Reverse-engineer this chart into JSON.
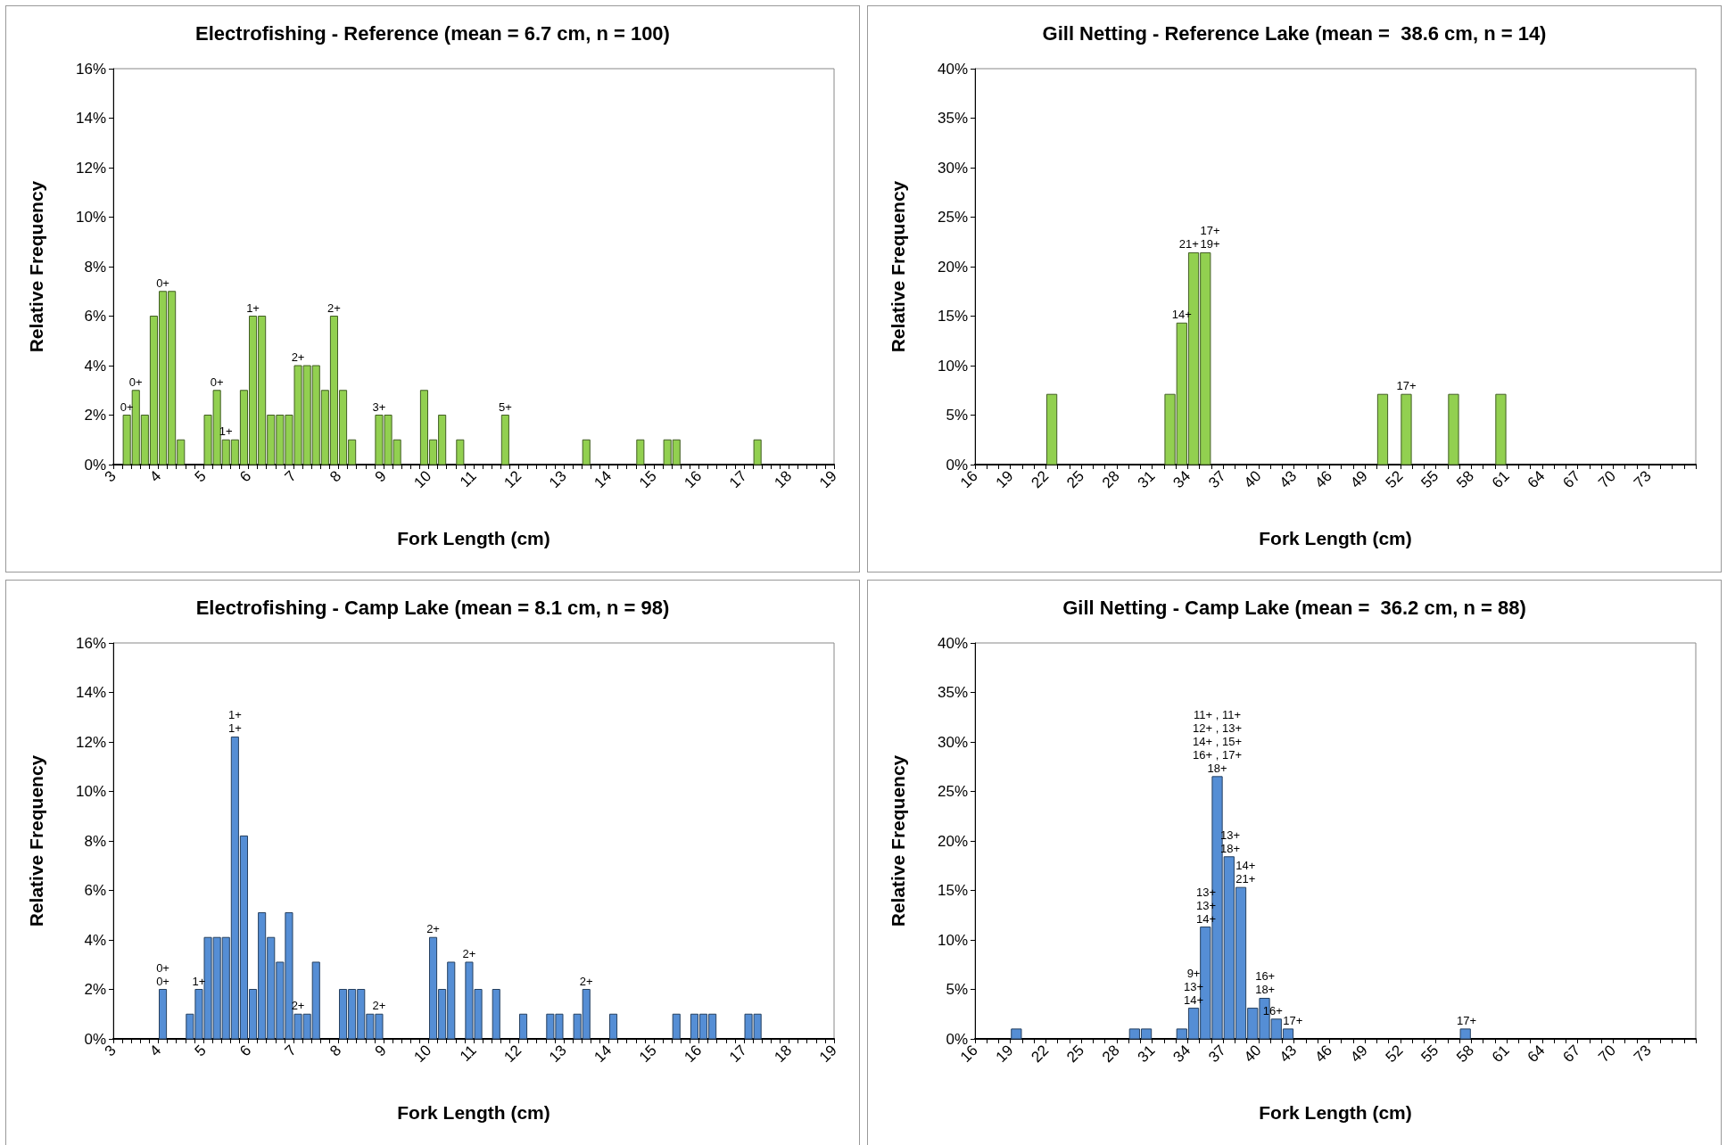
{
  "chart_data": [
    {
      "type": "histogram",
      "title": "Electrofishing - Reference (mean = 6.7 cm, n = 100)",
      "xlabel": "Fork Length (cm)",
      "ylabel": "Relative Frequency",
      "color": "#92d050",
      "bins": [
        3,
        3.2,
        3.4,
        3.6,
        3.8,
        4,
        4.2,
        4.4,
        4.6,
        4.8,
        5,
        5.2,
        5.4,
        5.6,
        5.8,
        6,
        6.2,
        6.4,
        6.6,
        6.8,
        7,
        7.2,
        7.4,
        7.6,
        7.8,
        8,
        8.2,
        8.4,
        8.6,
        8.8,
        9,
        9.2,
        9.4,
        9.6,
        9.8,
        10,
        10.2,
        10.4,
        10.6,
        10.8,
        11,
        11.2,
        11.4,
        11.6,
        11.8,
        12,
        12.2,
        12.4,
        12.6,
        12.8,
        13,
        13.2,
        13.4,
        13.6,
        13.8,
        14,
        14.2,
        14.4,
        14.6,
        14.8,
        15,
        15.2,
        15.4,
        15.6,
        15.8,
        16,
        16.2,
        16.4,
        16.6,
        16.8,
        17,
        17.2,
        17.4,
        17.6,
        17.8,
        18,
        18.2,
        18.4,
        18.6,
        18.8,
        19
      ],
      "values": [
        0,
        2,
        3,
        2,
        6,
        7,
        7,
        1,
        0,
        0,
        2,
        3,
        1,
        1,
        3,
        6,
        6,
        2,
        2,
        2,
        4,
        4,
        4,
        3,
        6,
        3,
        1,
        0,
        0,
        2,
        2,
        1,
        0,
        0,
        3,
        1,
        2,
        0,
        1,
        0,
        0,
        0,
        0,
        2,
        0,
        0,
        0,
        0,
        0,
        0,
        0,
        0,
        1,
        0,
        0,
        0,
        0,
        0,
        1,
        0,
        0,
        1,
        1,
        0,
        0,
        0,
        0,
        0,
        0,
        0,
        0,
        1,
        0,
        0,
        0,
        0,
        0,
        0,
        0,
        0
      ],
      "annotations": [
        {
          "text": "0+",
          "x": 3.3,
          "y": 2
        },
        {
          "text": "0+",
          "x": 3.5,
          "y": 3
        },
        {
          "text": "0+",
          "x": 4.1,
          "y": 7
        },
        {
          "text": "0+",
          "x": 5.3,
          "y": 3
        },
        {
          "text": "1+",
          "x": 5.5,
          "y": 1
        },
        {
          "text": "1+",
          "x": 6.1,
          "y": 6
        },
        {
          "text": "2+",
          "x": 7.1,
          "y": 4
        },
        {
          "text": "2+",
          "x": 7.9,
          "y": 6
        },
        {
          "text": "3+",
          "x": 8.9,
          "y": 2
        },
        {
          "text": "5+",
          "x": 11.7,
          "y": 2
        }
      ],
      "xlim": [
        3,
        19
      ],
      "xticks": [
        3,
        4,
        5,
        6,
        7,
        8,
        9,
        10,
        11,
        12,
        13,
        14,
        15,
        16,
        17,
        18,
        19
      ],
      "ylim": [
        0,
        16
      ],
      "yticks": [
        {
          "value": 0,
          "label": "0%"
        },
        {
          "value": 2,
          "label": "2%"
        },
        {
          "value": 4,
          "label": "4%"
        },
        {
          "value": 6,
          "label": "6%"
        },
        {
          "value": 8,
          "label": "8%"
        },
        {
          "value": 10,
          "label": "10%"
        },
        {
          "value": 12,
          "label": "12%"
        },
        {
          "value": 14,
          "label": "14%"
        },
        {
          "value": 16,
          "label": "16%"
        }
      ]
    },
    {
      "type": "histogram",
      "title": "Gill Netting - Reference Lake (mean =  38.6 cm, n = 14)",
      "xlabel": "Fork Length (cm)",
      "ylabel": "Relative Frequency",
      "color": "#92d050",
      "bins": [
        16,
        17,
        18,
        19,
        20,
        21,
        22,
        23,
        24,
        25,
        26,
        27,
        28,
        29,
        30,
        31,
        32,
        33,
        34,
        35,
        36,
        37,
        38,
        39,
        40,
        41,
        42,
        43,
        44,
        45,
        46,
        47,
        48,
        49,
        50,
        51,
        52,
        53,
        54,
        55,
        56,
        57,
        58,
        59,
        60,
        61,
        62,
        63,
        64,
        65,
        66,
        67,
        68,
        69,
        70,
        71,
        72,
        73,
        74,
        75,
        76,
        77
      ],
      "values": [
        0,
        0,
        0,
        0,
        0,
        0,
        7.1,
        0,
        0,
        0,
        0,
        0,
        0,
        0,
        0,
        0,
        7.1,
        14.3,
        21.4,
        21.4,
        0,
        0,
        0,
        0,
        0,
        0,
        0,
        0,
        0,
        0,
        0,
        0,
        0,
        0,
        7.1,
        0,
        7.1,
        0,
        0,
        0,
        7.1,
        0,
        0,
        0,
        7.1,
        0,
        0,
        0,
        0,
        0,
        0,
        0,
        0,
        0,
        0,
        0,
        0,
        0,
        0,
        0,
        0
      ],
      "annotations": [
        {
          "text": "14+",
          "x": 33.5,
          "y": 14.3
        },
        {
          "text": "21+",
          "x": 34.1,
          "y": 21.4
        },
        {
          "text": "17+\n19+",
          "x": 35.9,
          "y": 21.4
        },
        {
          "text": "17+",
          "x": 52.5,
          "y": 7.1
        }
      ],
      "xlim": [
        16,
        77
      ],
      "xticks": [
        16,
        19,
        22,
        25,
        28,
        31,
        34,
        37,
        40,
        43,
        46,
        49,
        52,
        55,
        58,
        61,
        64,
        67,
        70,
        73
      ],
      "ylim": [
        0,
        40
      ],
      "yticks": [
        {
          "value": 0,
          "label": "0%"
        },
        {
          "value": 5,
          "label": "5%"
        },
        {
          "value": 10,
          "label": "10%"
        },
        {
          "value": 15,
          "label": "15%"
        },
        {
          "value": 20,
          "label": "20%"
        },
        {
          "value": 25,
          "label": "25%"
        },
        {
          "value": 30,
          "label": "30%"
        },
        {
          "value": 35,
          "label": "35%"
        },
        {
          "value": 40,
          "label": "40%"
        }
      ]
    },
    {
      "type": "histogram",
      "title": "Electrofishing - Camp Lake (mean = 8.1 cm, n = 98)",
      "xlabel": "Fork Length (cm)",
      "ylabel": "Relative Frequency",
      "color": "#558ed5",
      "bins": [
        3,
        3.2,
        3.4,
        3.6,
        3.8,
        4,
        4.2,
        4.4,
        4.6,
        4.8,
        5,
        5.2,
        5.4,
        5.6,
        5.8,
        6,
        6.2,
        6.4,
        6.6,
        6.8,
        7,
        7.2,
        7.4,
        7.6,
        7.8,
        8,
        8.2,
        8.4,
        8.6,
        8.8,
        9,
        9.2,
        9.4,
        9.6,
        9.8,
        10,
        10.2,
        10.4,
        10.6,
        10.8,
        11,
        11.2,
        11.4,
        11.6,
        11.8,
        12,
        12.2,
        12.4,
        12.6,
        12.8,
        13,
        13.2,
        13.4,
        13.6,
        13.8,
        14,
        14.2,
        14.4,
        14.6,
        14.8,
        15,
        15.2,
        15.4,
        15.6,
        15.8,
        16,
        16.2,
        16.4,
        16.6,
        16.8,
        17,
        17.2,
        17.4,
        17.6,
        17.8,
        18,
        18.2,
        18.4,
        18.6,
        18.8,
        19
      ],
      "values": [
        0,
        0,
        0,
        0,
        0,
        2.0,
        0,
        0,
        1.0,
        2.0,
        4.1,
        4.1,
        4.1,
        12.2,
        8.2,
        2.0,
        5.1,
        4.1,
        3.1,
        5.1,
        1.0,
        1.0,
        3.1,
        0,
        0,
        2.0,
        2.0,
        2.0,
        1.0,
        1.0,
        0,
        0,
        0,
        0,
        0,
        4.1,
        2.0,
        3.1,
        0,
        3.1,
        2.0,
        0,
        2.0,
        0,
        0,
        1.0,
        0,
        0,
        1.0,
        1.0,
        0,
        1.0,
        2.0,
        0,
        0,
        1.0,
        0,
        0,
        0,
        0,
        0,
        0,
        1.0,
        0,
        1.0,
        1.0,
        1.0,
        0,
        0,
        0,
        1.0,
        1.0,
        0,
        0,
        0,
        0,
        0,
        0,
        0,
        0
      ],
      "annotations": [
        {
          "text": "0+\n0+",
          "x": 4.1,
          "y": 2.0
        },
        {
          "text": "1+",
          "x": 4.9,
          "y": 2.0
        },
        {
          "text": "1+\n1+",
          "x": 5.7,
          "y": 12.2
        },
        {
          "text": "2+",
          "x": 7.1,
          "y": 1.0
        },
        {
          "text": "2+",
          "x": 8.9,
          "y": 1.0
        },
        {
          "text": "2+",
          "x": 10.1,
          "y": 4.1
        },
        {
          "text": "2+",
          "x": 10.9,
          "y": 3.1
        },
        {
          "text": "2+",
          "x": 13.5,
          "y": 2.0
        }
      ],
      "xlim": [
        3,
        19
      ],
      "xticks": [
        3,
        4,
        5,
        6,
        7,
        8,
        9,
        10,
        11,
        12,
        13,
        14,
        15,
        16,
        17,
        18,
        19
      ],
      "ylim": [
        0,
        16
      ],
      "yticks": [
        {
          "value": 0,
          "label": "0%"
        },
        {
          "value": 2,
          "label": "2%"
        },
        {
          "value": 4,
          "label": "4%"
        },
        {
          "value": 6,
          "label": "6%"
        },
        {
          "value": 8,
          "label": "8%"
        },
        {
          "value": 10,
          "label": "10%"
        },
        {
          "value": 12,
          "label": "12%"
        },
        {
          "value": 14,
          "label": "14%"
        },
        {
          "value": 16,
          "label": "16%"
        }
      ]
    },
    {
      "type": "histogram",
      "title": "Gill Netting - Camp Lake (mean =  36.2 cm, n = 88)",
      "xlabel": "Fork Length (cm)",
      "ylabel": "Relative Frequency",
      "color": "#558ed5",
      "bins": [
        16,
        17,
        18,
        19,
        20,
        21,
        22,
        23,
        24,
        25,
        26,
        27,
        28,
        29,
        30,
        31,
        32,
        33,
        34,
        35,
        36,
        37,
        38,
        39,
        40,
        41,
        42,
        43,
        44,
        45,
        46,
        47,
        48,
        49,
        50,
        51,
        52,
        53,
        54,
        55,
        56,
        57,
        58,
        59,
        60,
        61,
        62,
        63,
        64,
        65,
        66,
        67,
        68,
        69,
        70,
        71,
        72,
        73,
        74,
        75,
        76,
        77
      ],
      "values": [
        0,
        0,
        0,
        1.0,
        0,
        0,
        0,
        0,
        0,
        0,
        0,
        0,
        0,
        1.0,
        1.0,
        0,
        0,
        1.0,
        3.1,
        11.3,
        26.5,
        18.4,
        15.3,
        3.1,
        4.1,
        2.0,
        1.0,
        0,
        0,
        0,
        0,
        0,
        0,
        0,
        0,
        0,
        0,
        0,
        0,
        0,
        0,
        1.0,
        0,
        0,
        0,
        0,
        0,
        0,
        0,
        0,
        0,
        0,
        0,
        0,
        0,
        0,
        0,
        0,
        0,
        0,
        0
      ],
      "annotations": [
        {
          "text": "9+\n13+\n14+",
          "x": 34.5,
          "y": 3.1
        },
        {
          "text": "13+\n13+\n14+",
          "x": 35.55,
          "y": 11.3
        },
        {
          "text": "11+ , 11+\n12+ , 13+\n14+ , 15+\n16+ , 17+\n18+",
          "x": 36.5,
          "y": 26.5
        },
        {
          "text": "13+\n18+",
          "x": 37.6,
          "y": 18.4
        },
        {
          "text": "14+\n21+",
          "x": 38.9,
          "y": 15.3
        },
        {
          "text": "16+\n18+",
          "x": 40.55,
          "y": 4.1
        },
        {
          "text": "16+",
          "x": 41.2,
          "y": 2.0
        },
        {
          "text": "17+",
          "x": 42.9,
          "y": 1.0
        },
        {
          "text": "17+",
          "x": 57.6,
          "y": 1.0
        }
      ],
      "xlim": [
        16,
        77
      ],
      "xticks": [
        16,
        19,
        22,
        25,
        28,
        31,
        34,
        37,
        40,
        43,
        46,
        49,
        52,
        55,
        58,
        61,
        64,
        67,
        70,
        73
      ],
      "ylim": [
        0,
        40
      ],
      "yticks": [
        {
          "value": 0,
          "label": "0%"
        },
        {
          "value": 5,
          "label": "5%"
        },
        {
          "value": 10,
          "label": "10%"
        },
        {
          "value": 15,
          "label": "15%"
        },
        {
          "value": 20,
          "label": "20%"
        },
        {
          "value": 25,
          "label": "25%"
        },
        {
          "value": 30,
          "label": "30%"
        },
        {
          "value": 35,
          "label": "35%"
        },
        {
          "value": 40,
          "label": "40%"
        }
      ]
    }
  ]
}
